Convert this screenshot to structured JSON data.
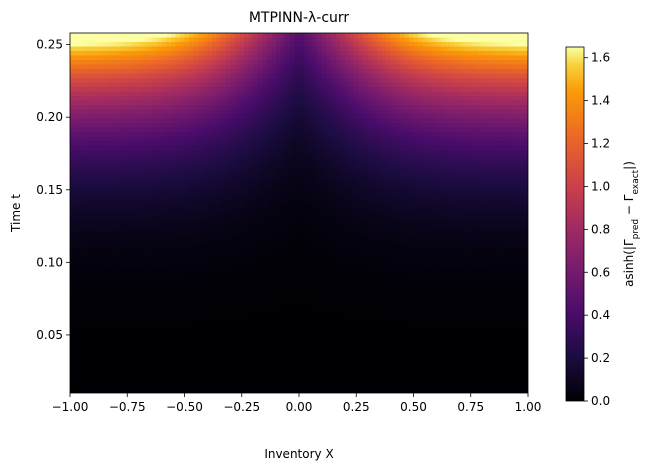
{
  "chart_data": {
    "type": "heatmap",
    "title": "MTPINN-λ-curr",
    "xlabel": "Inventory X",
    "ylabel": "Time t",
    "xlim": [
      -1.0,
      1.0
    ],
    "ylim": [
      0.01,
      0.258
    ],
    "x_ticks": [
      -1.0,
      -0.75,
      -0.5,
      -0.25,
      0.0,
      0.25,
      0.5,
      0.75,
      1.0
    ],
    "x_tick_labels": [
      "−1.00",
      "−0.75",
      "−0.50",
      "−0.25",
      "0.00",
      "0.25",
      "0.50",
      "0.75",
      "1.00"
    ],
    "y_ticks": [
      0.05,
      0.1,
      0.15,
      0.2,
      0.25
    ],
    "y_tick_labels": [
      "0.05",
      "0.10",
      "0.15",
      "0.20",
      "0.25"
    ],
    "colormap": "inferno",
    "colorbar": {
      "label": "asinh(|Γpred − Γexact|)",
      "range": [
        0.0,
        1.65
      ],
      "ticks": [
        0.0,
        0.2,
        0.4,
        0.6,
        0.8,
        1.0,
        1.2,
        1.4,
        1.6
      ],
      "tick_labels": [
        "0.0",
        "0.2",
        "0.4",
        "0.6",
        "0.8",
        "1.0",
        "1.2",
        "1.4",
        "1.6"
      ]
    },
    "field_description": "Error near 0 over most of the domain; grows toward the top-left and top-right corners, reaching about 1.65 at t≈0.258, |X|=1; central region stays near 0",
    "grid": false
  }
}
